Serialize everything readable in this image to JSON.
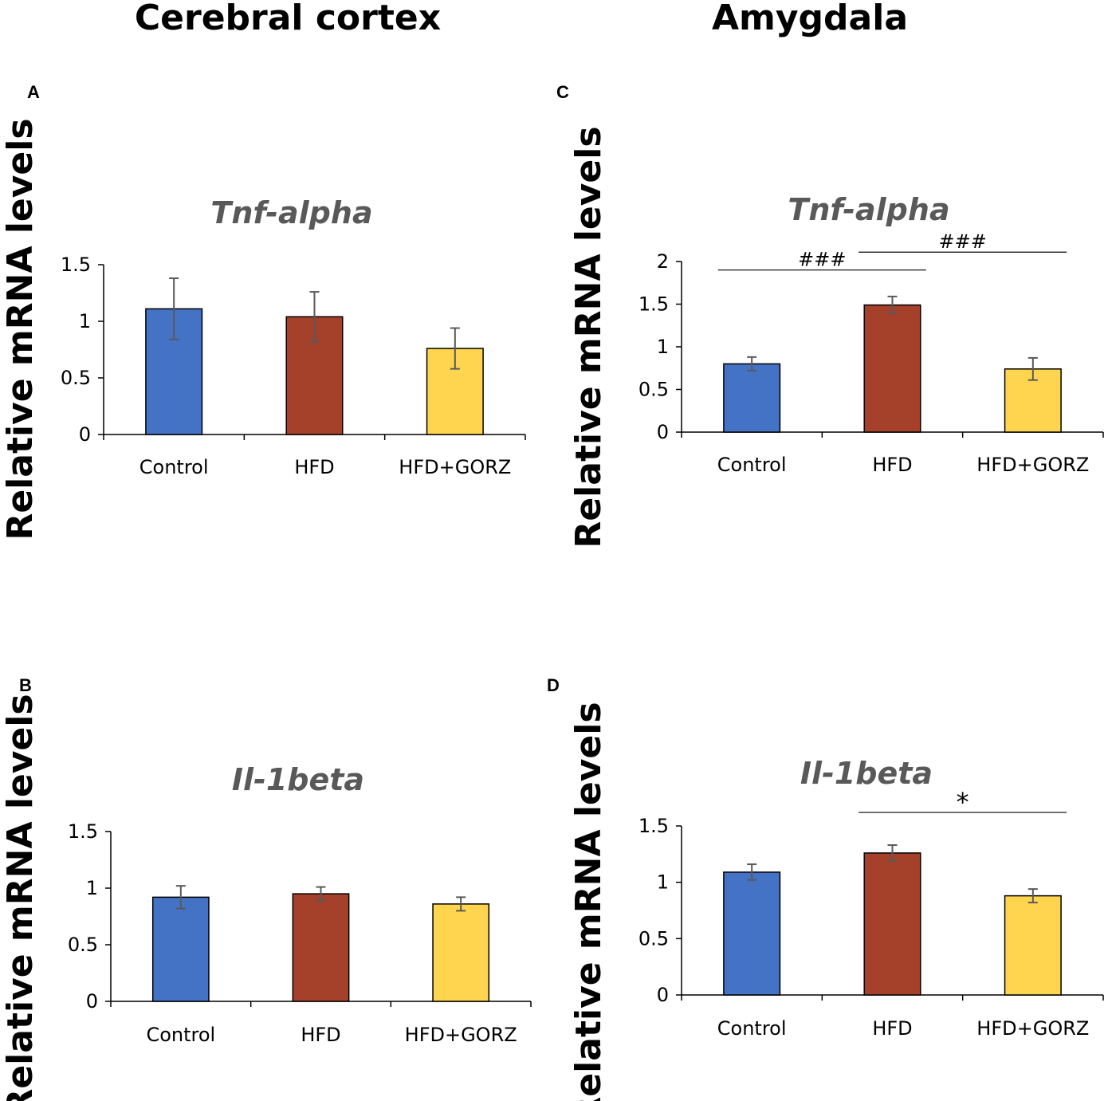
{
  "column_titles": {
    "left": "Cerebral cortex",
    "right": "Amygdala"
  },
  "colors": {
    "Control": "#4472C4",
    "HFD": "#A5402A",
    "HFD+GORZ": "#FFD54F",
    "error_bar": "#595959",
    "title_gray": "#595959"
  },
  "chart_data": [
    {
      "id": "A",
      "panel_label": "A",
      "type": "bar",
      "title": "Tnf-alpha",
      "ylabel": "Relative mRNA levels",
      "xlabel": "",
      "categories": [
        "Control",
        "HFD",
        "HFD+GORZ"
      ],
      "values": [
        1.11,
        1.04,
        0.76
      ],
      "errors": [
        0.27,
        0.22,
        0.18
      ],
      "ylim": [
        0,
        1.5
      ],
      "yticks": [
        0,
        0.5,
        1,
        1.5
      ],
      "ytick_labels": [
        "0",
        "0.5",
        "1",
        "1.5"
      ],
      "significance": []
    },
    {
      "id": "B",
      "panel_label": "B",
      "type": "bar",
      "title": "Il-1beta",
      "ylabel": "Relative mRNA levels",
      "xlabel": "",
      "categories": [
        "Control",
        "HFD",
        "HFD+GORZ"
      ],
      "values": [
        0.92,
        0.95,
        0.86
      ],
      "errors": [
        0.1,
        0.06,
        0.06
      ],
      "ylim": [
        0,
        1.5
      ],
      "yticks": [
        0,
        0.5,
        1,
        1.5
      ],
      "ytick_labels": [
        "0",
        "0.5",
        "1",
        "1.5"
      ],
      "significance": []
    },
    {
      "id": "C",
      "panel_label": "C",
      "type": "bar",
      "title": "Tnf-alpha",
      "ylabel": "Relative mRNA levels",
      "xlabel": "",
      "categories": [
        "Control",
        "HFD",
        "HFD+GORZ"
      ],
      "values": [
        0.8,
        1.49,
        0.74
      ],
      "errors": [
        0.08,
        0.1,
        0.13
      ],
      "ylim": [
        0,
        2
      ],
      "yticks": [
        0,
        0.5,
        1,
        1.5,
        2
      ],
      "ytick_labels": [
        "0",
        "0.5",
        "1",
        "1.5",
        "2"
      ],
      "significance": [
        {
          "from": 0,
          "to": 1,
          "label": "###",
          "level": 1.9
        },
        {
          "from": 1,
          "to": 2,
          "label": "###",
          "level": 2.11
        }
      ]
    },
    {
      "id": "D",
      "panel_label": "D",
      "type": "bar",
      "title": "Il-1beta",
      "ylabel": "Relative mRNA levels",
      "xlabel": "",
      "categories": [
        "Control",
        "HFD",
        "HFD+GORZ"
      ],
      "values": [
        1.09,
        1.26,
        0.88
      ],
      "errors": [
        0.07,
        0.07,
        0.06
      ],
      "ylim": [
        0,
        1.5
      ],
      "yticks": [
        0,
        0.5,
        1,
        1.5
      ],
      "ytick_labels": [
        "0",
        "0.5",
        "1",
        "1.5"
      ],
      "significance": [
        {
          "from": 1,
          "to": 2,
          "label": "*",
          "level": 1.62
        }
      ]
    }
  ]
}
